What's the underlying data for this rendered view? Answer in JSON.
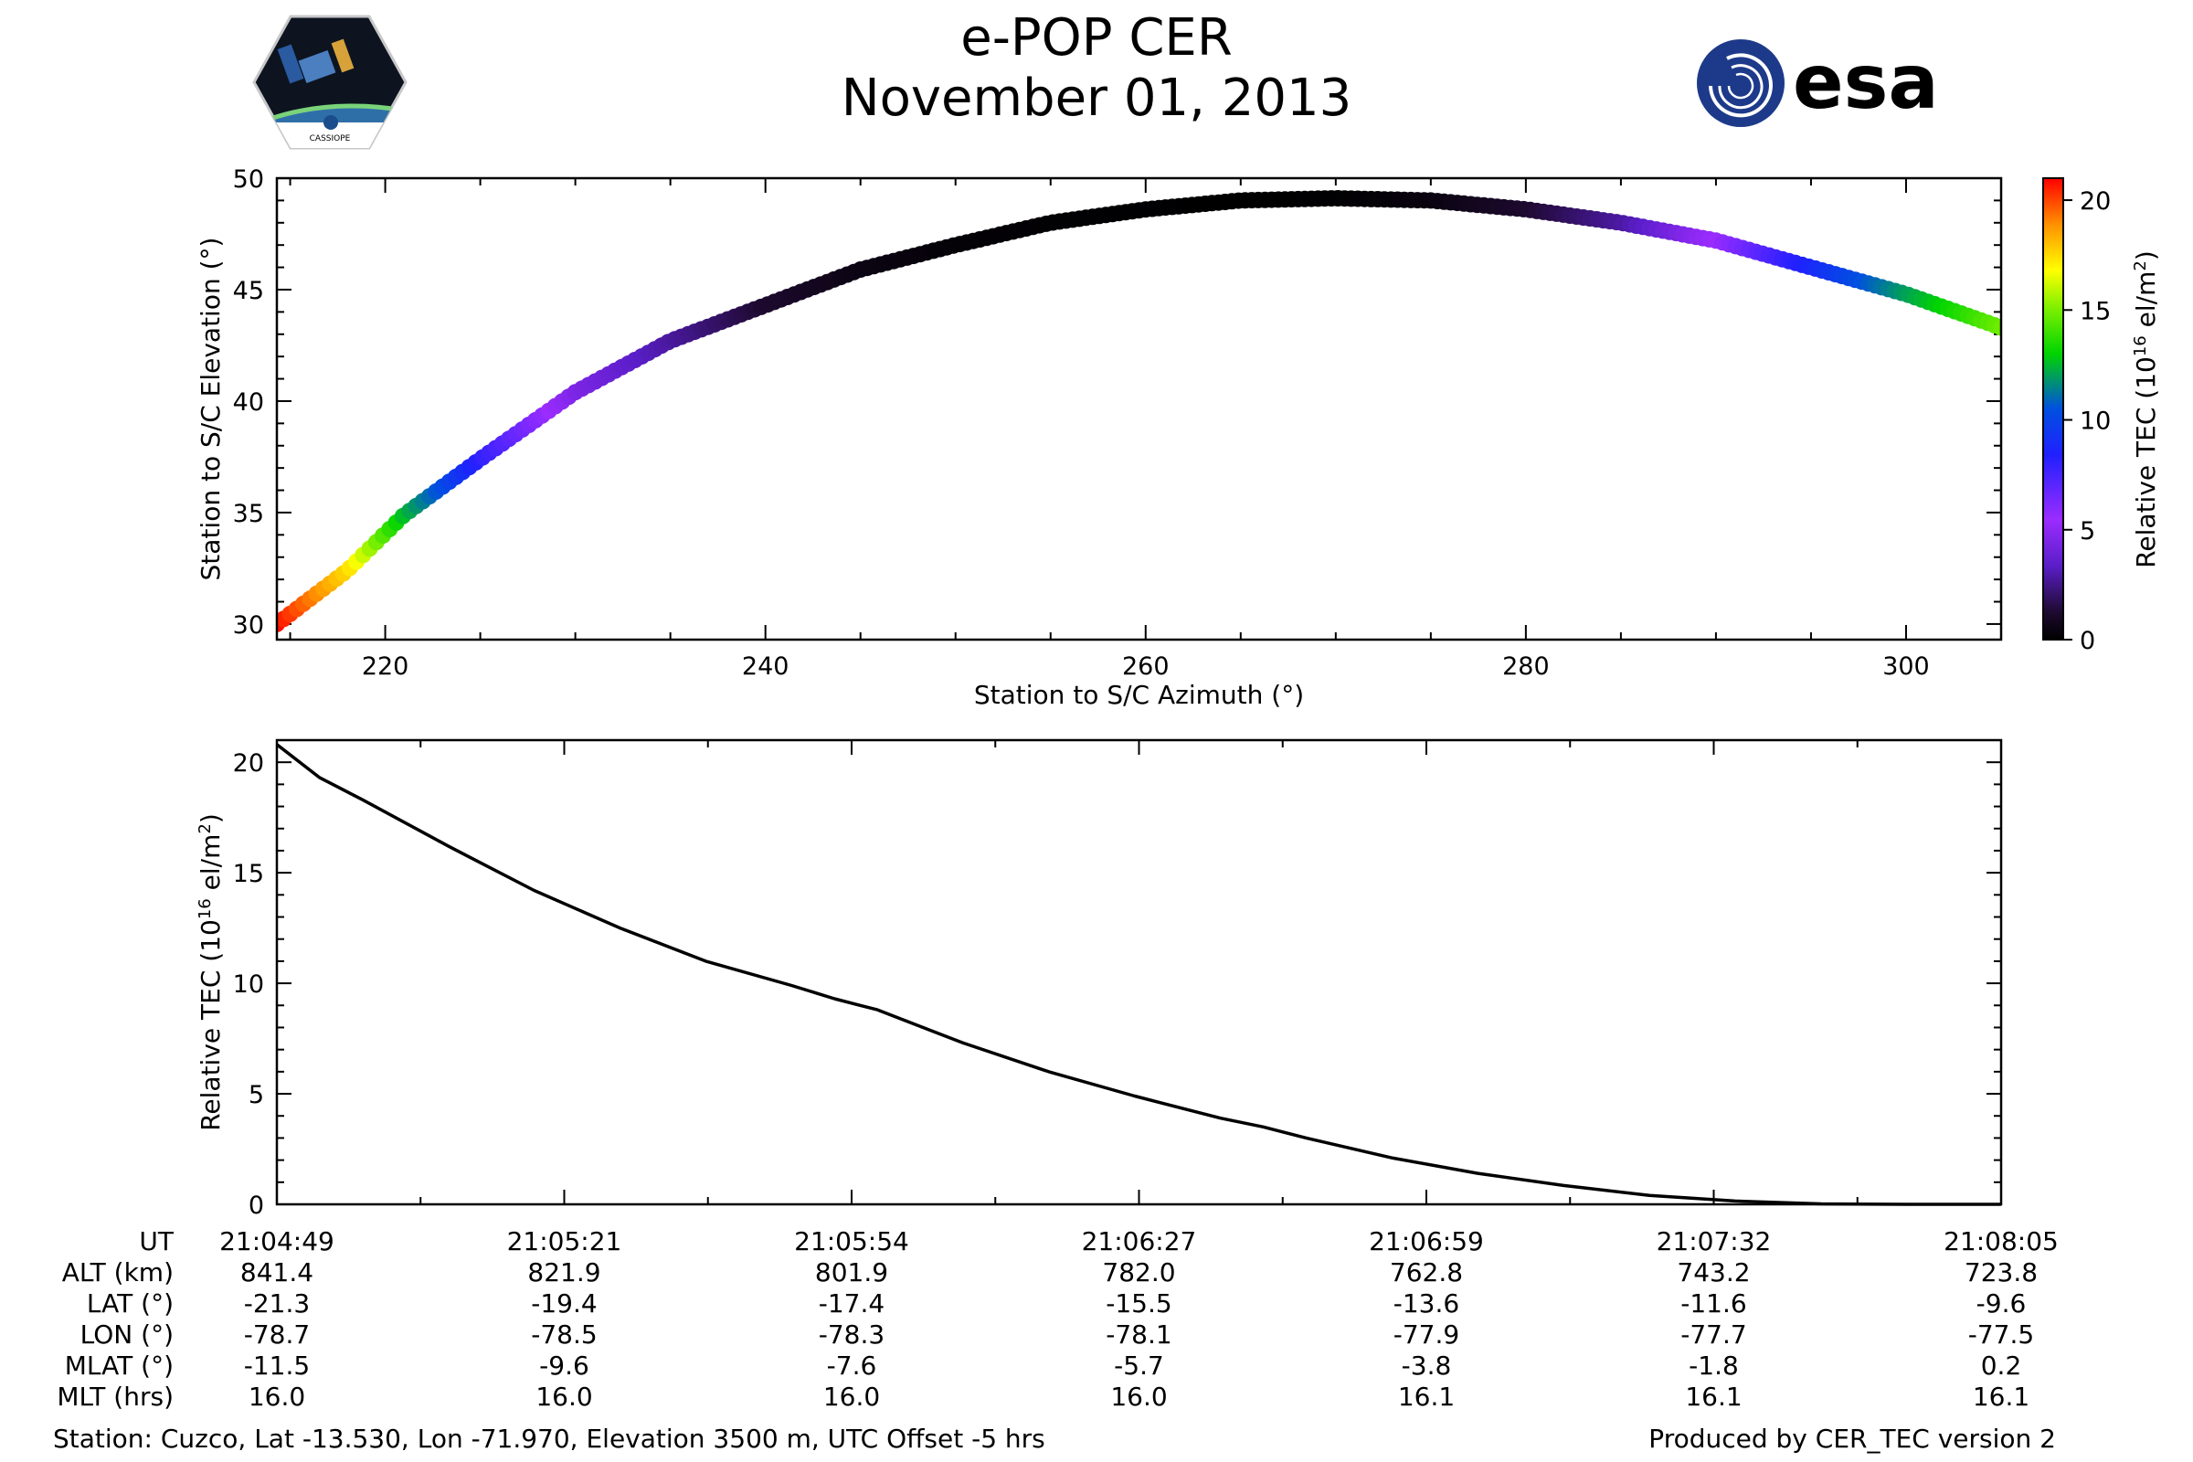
{
  "header": {
    "title": "e-POP CER",
    "date": "November 01, 2013",
    "left_logo": "CASSIOPE",
    "right_logo": "esa"
  },
  "footer": {
    "station": "Station: Cuzco, Lat -13.530, Lon -71.970, Elevation 3500 m, UTC Offset -5 hrs",
    "produced": "Produced by CER_TEC version 2"
  },
  "colors": {
    "line": "#000000",
    "frame": "#000000",
    "background": "#ffffff"
  },
  "chart_data": [
    {
      "type": "scatter",
      "title": "",
      "xlabel": "Station to S/C Azimuth (°)",
      "ylabel": "Station to S/C Elevation (°)",
      "xlim": [
        214.3,
        305
      ],
      "ylim": [
        29.3,
        50
      ],
      "xticks": [
        220,
        240,
        260,
        280,
        300
      ],
      "yticks": [
        30,
        35,
        40,
        45,
        50
      ],
      "colorbar": {
        "label": "Relative TEC (10",
        "label_sup": "16",
        "label_unit": " el/m",
        "label_unit_sup": "2",
        "label_end": ")",
        "range": [
          0,
          21
        ],
        "ticks": [
          0,
          5,
          10,
          15,
          20
        ],
        "colormap": "gist_ncar_like"
      },
      "track": {
        "azimuth_start": 214.3,
        "azimuth_end": 305.0,
        "elevation_start": 30.0,
        "elevation_peak": 49.1,
        "peak_azimuth": 270.0,
        "elevation_end": 43.3
      },
      "points": [
        {
          "az": 214.3,
          "el": 30.0,
          "tec": 20.8
        },
        {
          "az": 218,
          "el": 32.4,
          "tec": 17.5
        },
        {
          "az": 221,
          "el": 34.9,
          "tec": 12.5
        },
        {
          "az": 225,
          "el": 37.4,
          "tec": 8.0
        },
        {
          "az": 230,
          "el": 40.4,
          "tec": 4.5
        },
        {
          "az": 235,
          "el": 42.7,
          "tec": 2.8
        },
        {
          "az": 240,
          "el": 44.3,
          "tec": 1.2
        },
        {
          "az": 245,
          "el": 45.9,
          "tec": 0.5
        },
        {
          "az": 250,
          "el": 47.0,
          "tec": 0.2
        },
        {
          "az": 255,
          "el": 48.0,
          "tec": 0.1
        },
        {
          "az": 260,
          "el": 48.6,
          "tec": 0.05
        },
        {
          "az": 265,
          "el": 49.0,
          "tec": 0.02
        },
        {
          "az": 270,
          "el": 49.1,
          "tec": 0.05
        },
        {
          "az": 275,
          "el": 49.0,
          "tec": 0.4
        },
        {
          "az": 280,
          "el": 48.6,
          "tec": 1.2
        },
        {
          "az": 285,
          "el": 48.0,
          "tec": 2.8
        },
        {
          "az": 290,
          "el": 47.2,
          "tec": 5.5
        },
        {
          "az": 295,
          "el": 46.0,
          "tec": 8.8
        },
        {
          "az": 300,
          "el": 44.8,
          "tec": 12.0
        },
        {
          "az": 305,
          "el": 43.3,
          "tec": 14.8
        }
      ]
    },
    {
      "type": "line",
      "title": "",
      "xlabel": "",
      "ylabel": "Relative TEC (10",
      "ylabel_sup": "16",
      "ylabel_unit": " el/m",
      "ylabel_unit_sup": "2",
      "ylabel_end": ")",
      "xlim": [
        0,
        201
      ],
      "ylim": [
        0,
        21
      ],
      "yticks": [
        0,
        5,
        10,
        15,
        20
      ],
      "series": [
        {
          "name": "Relative TEC",
          "x": [
            0,
            5,
            10,
            20,
            30,
            40,
            50,
            60,
            65,
            68,
            70,
            80,
            90,
            100,
            110,
            115,
            120,
            130,
            140,
            150,
            160,
            170,
            180,
            190,
            201
          ],
          "y": [
            20.8,
            19.3,
            18.3,
            16.2,
            14.2,
            12.5,
            11.0,
            9.9,
            9.3,
            9.0,
            8.8,
            7.3,
            6.0,
            4.9,
            3.9,
            3.5,
            3.0,
            2.1,
            1.4,
            0.85,
            0.4,
            0.15,
            0.02,
            0.0,
            0.0
          ]
        }
      ],
      "table": {
        "row_labels": [
          "UT",
          "ALT (km)",
          "LAT (°)",
          "LON (°)",
          "MLAT (°)",
          "MLT (hrs)"
        ],
        "columns": [
          [
            "21:04:49",
            "841.4",
            "-21.3",
            "-78.7",
            "-11.5",
            "16.0"
          ],
          [
            "21:05:21",
            "821.9",
            "-19.4",
            "-78.5",
            "-9.6",
            "16.0"
          ],
          [
            "21:05:54",
            "801.9",
            "-17.4",
            "-78.3",
            "-7.6",
            "16.0"
          ],
          [
            "21:06:27",
            "782.0",
            "-15.5",
            "-78.1",
            "-5.7",
            "16.0"
          ],
          [
            "21:06:59",
            "762.8",
            "-13.6",
            "-77.9",
            "-3.8",
            "16.1"
          ],
          [
            "21:07:32",
            "743.2",
            "-11.6",
            "-77.7",
            "-1.8",
            "16.1"
          ],
          [
            "21:08:05",
            "723.8",
            "-9.6",
            "-77.5",
            "0.2",
            "16.1"
          ]
        ]
      }
    }
  ]
}
